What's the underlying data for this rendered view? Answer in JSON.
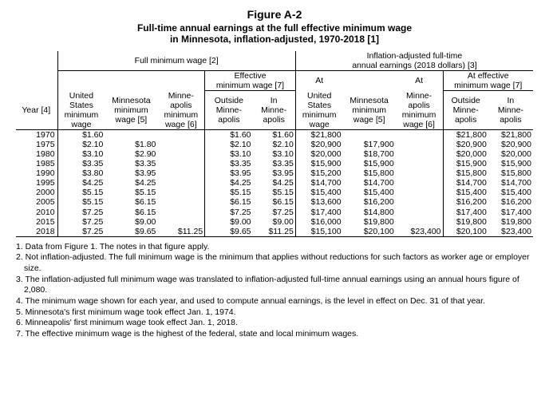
{
  "title": "Figure A-2",
  "subtitle1": "Full-time annual earnings at the full effective minimum wage",
  "subtitle2": "in Minnesota, inflation-adjusted, 1970-2018 [1]",
  "group_headers": {
    "full_min_wage": "Full minimum wage [2]",
    "infl_adj": "Inflation-adjusted full-time annual earnings (2018 dollars) [3]",
    "eff_min_wage": "Effective minimum wage [7]",
    "at_eff_min_wage": "At effective minimum wage [7]",
    "outside_mpls": "Outside Minne-apolis",
    "in_mpls": "In Minne-apolis"
  },
  "col_headers": {
    "year": "Year [4]",
    "us_min": "United States minimum wage",
    "mn_min": "Minnesota minimum wage [5]",
    "mpls_min": "Minne-apolis minimum wage [6]",
    "at_us": "At United States minimum wage",
    "at_mn": "At Minnesota minimum wage [5]",
    "at_mpls": "At Minne-apolis minimum wage [6]"
  },
  "rows": [
    {
      "year": "1970",
      "us": "$1.60",
      "mn": "",
      "mpls": "",
      "eff_out": "$1.60",
      "eff_in": "$1.60",
      "a_us": "$21,800",
      "a_mn": "",
      "a_mpls": "",
      "ae_out": "$21,800",
      "ae_in": "$21,800"
    },
    {
      "year": "1975",
      "us": "$2.10",
      "mn": "$1.80",
      "mpls": "",
      "eff_out": "$2.10",
      "eff_in": "$2.10",
      "a_us": "$20,900",
      "a_mn": "$17,900",
      "a_mpls": "",
      "ae_out": "$20,900",
      "ae_in": "$20,900"
    },
    {
      "year": "1980",
      "us": "$3.10",
      "mn": "$2.90",
      "mpls": "",
      "eff_out": "$3.10",
      "eff_in": "$3.10",
      "a_us": "$20,000",
      "a_mn": "$18,700",
      "a_mpls": "",
      "ae_out": "$20,000",
      "ae_in": "$20,000"
    },
    {
      "year": "1985",
      "us": "$3.35",
      "mn": "$3.35",
      "mpls": "",
      "eff_out": "$3.35",
      "eff_in": "$3.35",
      "a_us": "$15,900",
      "a_mn": "$15,900",
      "a_mpls": "",
      "ae_out": "$15,900",
      "ae_in": "$15,900"
    },
    {
      "year": "1990",
      "us": "$3.80",
      "mn": "$3.95",
      "mpls": "",
      "eff_out": "$3.95",
      "eff_in": "$3.95",
      "a_us": "$15,200",
      "a_mn": "$15,800",
      "a_mpls": "",
      "ae_out": "$15,800",
      "ae_in": "$15,800"
    },
    {
      "year": "1995",
      "us": "$4.25",
      "mn": "$4.25",
      "mpls": "",
      "eff_out": "$4.25",
      "eff_in": "$4.25",
      "a_us": "$14,700",
      "a_mn": "$14,700",
      "a_mpls": "",
      "ae_out": "$14,700",
      "ae_in": "$14,700"
    },
    {
      "year": "2000",
      "us": "$5.15",
      "mn": "$5.15",
      "mpls": "",
      "eff_out": "$5.15",
      "eff_in": "$5.15",
      "a_us": "$15,400",
      "a_mn": "$15,400",
      "a_mpls": "",
      "ae_out": "$15,400",
      "ae_in": "$15,400"
    },
    {
      "year": "2005",
      "us": "$5.15",
      "mn": "$6.15",
      "mpls": "",
      "eff_out": "$6.15",
      "eff_in": "$6.15",
      "a_us": "$13,600",
      "a_mn": "$16,200",
      "a_mpls": "",
      "ae_out": "$16,200",
      "ae_in": "$16,200"
    },
    {
      "year": "2010",
      "us": "$7.25",
      "mn": "$6.15",
      "mpls": "",
      "eff_out": "$7.25",
      "eff_in": "$7.25",
      "a_us": "$17,400",
      "a_mn": "$14,800",
      "a_mpls": "",
      "ae_out": "$17,400",
      "ae_in": "$17,400"
    },
    {
      "year": "2015",
      "us": "$7.25",
      "mn": "$9.00",
      "mpls": "",
      "eff_out": "$9.00",
      "eff_in": "$9.00",
      "a_us": "$16,000",
      "a_mn": "$19,800",
      "a_mpls": "",
      "ae_out": "$19,800",
      "ae_in": "$19,800"
    },
    {
      "year": "2018",
      "us": "$7.25",
      "mn": "$9.65",
      "mpls": "$11.25",
      "eff_out": "$9.65",
      "eff_in": "$11.25",
      "a_us": "$15,100",
      "a_mn": "$20,100",
      "a_mpls": "$23,400",
      "ae_out": "$20,100",
      "ae_in": "$23,400"
    }
  ],
  "notes": [
    "1. Data from Figure 1. The notes in that figure apply.",
    "2. Not inflation-adjusted. The full minimum wage is the minimum that applies without reductions for such factors as worker age or employer size.",
    "3. The inflation-adjusted full minimum wage was translated to inflation-adjusted full-time annual earnings using an annual hours figure of 2,080.",
    "4. The minimum wage shown for each year, and used to compute annual earnings, is the level in effect on Dec. 31 of that year.",
    "5. Minnesota's first minimum wage took effect Jan. 1, 1974.",
    "6. Minneapolis' first minimum wage took effect Jan. 1, 2018.",
    "7. The effective minimum wage is the highest of the federal, state and local minimum wages."
  ]
}
